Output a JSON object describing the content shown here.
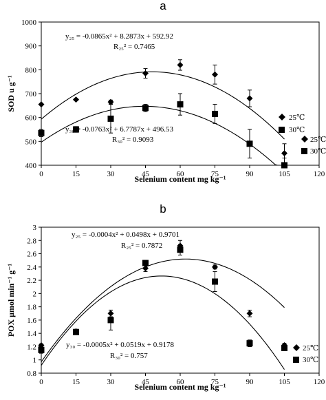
{
  "chart_data": [
    {
      "type": "scatter",
      "panel_label": "a",
      "xlabel": "Selenium content  mg kg⁻¹",
      "ylabel": "SOD  u g⁻¹",
      "xlim": [
        0,
        120
      ],
      "ylim": [
        400,
        1000
      ],
      "x_ticks": [
        "0",
        "15",
        "30",
        "45",
        "60",
        "75",
        "90",
        "105",
        "120"
      ],
      "y_ticks": [
        "400",
        "500",
        "600",
        "700",
        "800",
        "900",
        "1000"
      ],
      "x": [
        0,
        15,
        30,
        45,
        60,
        75,
        90,
        105
      ],
      "series": [
        {
          "name": "25℃",
          "marker": "diamond",
          "values": [
            655,
            675,
            665,
            785,
            820,
            780,
            680,
            450
          ],
          "errors": [
            0,
            5,
            8,
            20,
            22,
            40,
            35,
            40
          ],
          "fit": {
            "a": -0.0865,
            "b": 8.2873,
            "c": 592.92
          }
        },
        {
          "name": "30℃",
          "marker": "square",
          "values": [
            535,
            550,
            595,
            640,
            655,
            615,
            490,
            400
          ],
          "errors": [
            15,
            12,
            60,
            15,
            45,
            40,
            60,
            30
          ],
          "fit": {
            "a": -0.0763,
            "b": 6.7787,
            "c": 496.53
          }
        }
      ],
      "annotations": {
        "eq1": "y₂₅ = -0.0865x² + 8.2873x + 592.92",
        "r1": "R₂₅² = 0.7465",
        "eq2": "y₃₀ = -0.0763x² + 6.7787x + 496.53",
        "r2": "R₃₀² = 0.9093"
      },
      "legend_placement": "right"
    },
    {
      "type": "scatter",
      "panel_label": "b",
      "xlabel": "Selenium content  mg kg⁻¹",
      "ylabel": "POX  μmol min⁻¹ g⁻¹",
      "xlim": [
        0,
        120
      ],
      "ylim": [
        0.8,
        3.0
      ],
      "x_ticks": [
        "0",
        "15",
        "30",
        "45",
        "60",
        "75",
        "90",
        "105",
        "120"
      ],
      "y_ticks": [
        "0.8",
        "1",
        "1.2",
        "1.4",
        "1.6",
        "1.8",
        "2",
        "2.2",
        "2.4",
        "2.6",
        "2.8",
        "3"
      ],
      "x": [
        0,
        15,
        30,
        45,
        60,
        75,
        90,
        105
      ],
      "series": [
        {
          "name": "25℃",
          "marker": "diamond",
          "values": [
            1.22,
            1.43,
            1.7,
            2.38,
            2.72,
            2.4,
            1.7,
            1.22
          ],
          "errors": [
            0.02,
            0.03,
            0.05,
            0.05,
            0.08,
            0.03,
            0.05,
            0.03
          ],
          "fit": {
            "a": -0.0004,
            "b": 0.0498,
            "c": 0.9701
          }
        },
        {
          "name": "30℃",
          "marker": "square",
          "values": [
            1.15,
            1.42,
            1.6,
            2.46,
            2.66,
            2.18,
            1.25,
            1.18
          ],
          "errors": [
            0.05,
            0.04,
            0.15,
            0.04,
            0.08,
            0.15,
            0.05,
            0.03
          ],
          "fit": {
            "a": -0.0005,
            "b": 0.0519,
            "c": 0.9178
          }
        }
      ],
      "annotations": {
        "eq1": "y₂₅ = -0.0004x² + 0.0498x + 0.9701",
        "r1": "R₂₅² = 0.7872",
        "eq2": "y₃₀ = -0.0005x² + 0.0519x + 0.9178",
        "r2": "R₃₀² = 0.757"
      },
      "legend_placement": "bottom-right"
    }
  ]
}
